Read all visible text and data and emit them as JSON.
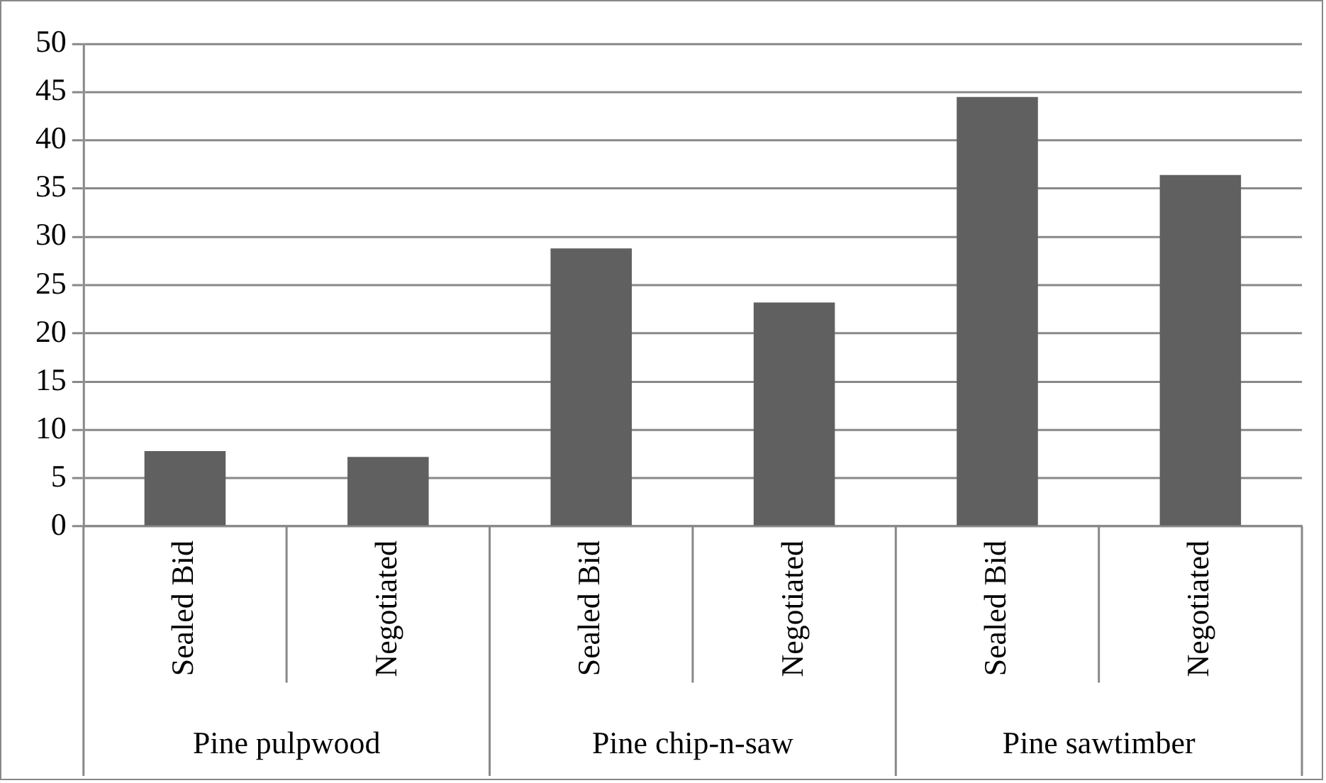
{
  "chart_data": {
    "type": "bar",
    "categories": [
      "Sealed Bid",
      "Negotiated",
      "Sealed Bid",
      "Negotiated",
      "Sealed Bid",
      "Negotiated"
    ],
    "values": [
      7.8,
      7.2,
      28.8,
      23.2,
      44.5,
      36.4
    ],
    "color": "#606060",
    "ylim": [
      0,
      50
    ],
    "yticks": [
      0,
      5,
      10,
      15,
      20,
      25,
      30,
      35,
      40,
      45,
      50
    ],
    "grid": "y",
    "annotations": [
      "Pine pulpwood",
      "Pine chip-n-saw",
      "Pine sawtimber"
    ]
  }
}
